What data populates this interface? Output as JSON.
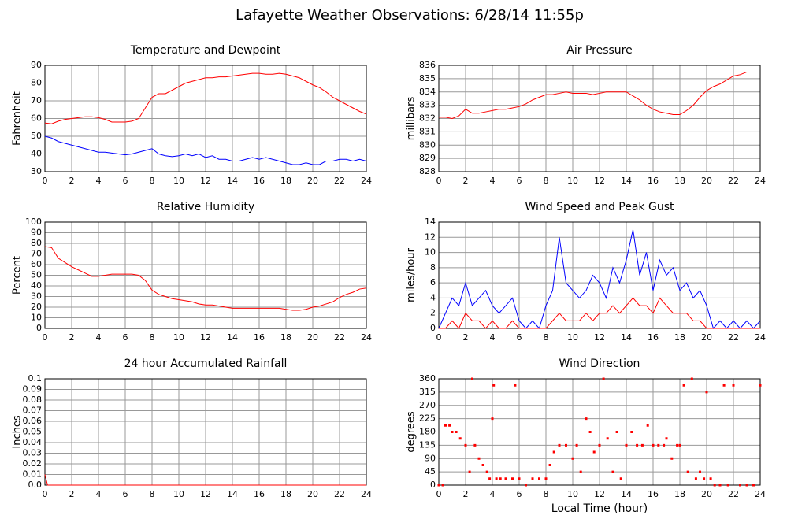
{
  "title": "Lafayette Weather Observations: 6/28/14 11:55p",
  "chart_data": [
    {
      "type": "line",
      "title": "Temperature and Dewpoint",
      "ylabel": "Fahrenheit",
      "xlim": [
        0,
        24
      ],
      "xticks": [
        0,
        2,
        4,
        6,
        8,
        10,
        12,
        14,
        16,
        18,
        20,
        22,
        24
      ],
      "ylim": [
        30,
        90
      ],
      "yticks": [
        30,
        40,
        50,
        60,
        70,
        80,
        90
      ],
      "grid": true,
      "x": [
        0,
        0.5,
        1,
        1.5,
        2,
        2.5,
        3,
        3.5,
        4,
        4.5,
        5,
        5.5,
        6,
        6.5,
        7,
        7.5,
        8,
        8.5,
        9,
        9.5,
        10,
        10.5,
        11,
        11.5,
        12,
        12.5,
        13,
        13.5,
        14,
        14.5,
        15,
        15.5,
        16,
        16.5,
        17,
        17.5,
        18,
        18.5,
        19,
        19.5,
        20,
        20.5,
        21,
        21.5,
        22,
        22.5,
        23,
        23.5,
        24
      ],
      "series": [
        {
          "color": "#ff0000",
          "values": [
            57.5,
            57,
            58.5,
            59.5,
            60,
            60.5,
            61,
            61,
            60.5,
            59.5,
            58,
            58,
            58,
            58.5,
            60,
            66,
            72,
            74,
            74,
            76,
            78,
            80,
            81,
            82,
            83,
            83,
            83.5,
            83.5,
            84,
            84.5,
            85,
            85.5,
            85.5,
            85,
            85,
            85.5,
            85,
            84,
            83,
            81,
            79,
            77.5,
            75,
            72,
            70,
            68,
            66,
            64,
            62.5
          ]
        },
        {
          "color": "#0000ff",
          "values": [
            50,
            49,
            47,
            46,
            45,
            44,
            43,
            42,
            41,
            41,
            40.5,
            40,
            39.5,
            40,
            41,
            42,
            43,
            40,
            39,
            38.5,
            39,
            40,
            39,
            40,
            38,
            39,
            37,
            37,
            36,
            36,
            37,
            38,
            37,
            38,
            37,
            36,
            35,
            34,
            34,
            35,
            34,
            34,
            36,
            36,
            37,
            37,
            36,
            37,
            36
          ]
        }
      ]
    },
    {
      "type": "line",
      "title": "Air Pressure",
      "ylabel": "millibars",
      "xlim": [
        0,
        24
      ],
      "xticks": [
        0,
        2,
        4,
        6,
        8,
        10,
        12,
        14,
        16,
        18,
        20,
        22,
        24
      ],
      "ylim": [
        828,
        836
      ],
      "yticks": [
        828,
        829,
        830,
        831,
        832,
        833,
        834,
        835,
        836
      ],
      "grid": true,
      "x": [
        0,
        0.5,
        1,
        1.5,
        2,
        2.5,
        3,
        3.5,
        4,
        4.5,
        5,
        5.5,
        6,
        6.5,
        7,
        7.5,
        8,
        8.5,
        9,
        9.5,
        10,
        10.5,
        11,
        11.5,
        12,
        12.5,
        13,
        13.5,
        14,
        14.5,
        15,
        15.5,
        16,
        16.5,
        17,
        17.5,
        18,
        18.5,
        19,
        19.5,
        20,
        20.5,
        21,
        21.5,
        22,
        22.5,
        23,
        23.5,
        24
      ],
      "series": [
        {
          "color": "#ff0000",
          "values": [
            832.1,
            832.1,
            832,
            832.2,
            832.7,
            832.4,
            832.4,
            832.5,
            832.6,
            832.7,
            832.7,
            832.8,
            832.9,
            833.1,
            833.4,
            833.6,
            833.8,
            833.8,
            833.9,
            834,
            833.9,
            833.9,
            833.9,
            833.8,
            833.9,
            834,
            834,
            834,
            834,
            833.7,
            833.4,
            833,
            832.7,
            832.5,
            832.4,
            832.3,
            832.3,
            832.6,
            833,
            833.6,
            834.1,
            834.4,
            834.6,
            834.9,
            835.2,
            835.3,
            835.5,
            835.5,
            835.5
          ]
        }
      ]
    },
    {
      "type": "line",
      "title": "Relative Humidity",
      "ylabel": "Percent",
      "xlim": [
        0,
        24
      ],
      "xticks": [
        0,
        2,
        4,
        6,
        8,
        10,
        12,
        14,
        16,
        18,
        20,
        22,
        24
      ],
      "ylim": [
        0,
        100
      ],
      "yticks": [
        0,
        10,
        20,
        30,
        40,
        50,
        60,
        70,
        80,
        90,
        100
      ],
      "grid": true,
      "x": [
        0,
        0.5,
        1,
        1.5,
        2,
        2.5,
        3,
        3.5,
        4,
        4.5,
        5,
        5.5,
        6,
        6.5,
        7,
        7.5,
        8,
        8.5,
        9,
        9.5,
        10,
        10.5,
        11,
        11.5,
        12,
        12.5,
        13,
        13.5,
        14,
        14.5,
        15,
        15.5,
        16,
        16.5,
        17,
        17.5,
        18,
        18.5,
        19,
        19.5,
        20,
        20.5,
        21,
        21.5,
        22,
        22.5,
        23,
        23.5,
        24
      ],
      "series": [
        {
          "color": "#ff0000",
          "values": [
            77,
            76,
            66,
            62,
            58,
            55,
            52,
            49,
            49,
            50,
            51,
            51,
            51,
            51,
            50,
            45,
            36,
            32,
            30,
            28,
            27,
            26,
            25,
            23,
            22,
            22,
            21,
            20,
            19,
            19,
            19,
            19,
            19,
            19,
            19,
            19,
            18,
            17,
            17,
            18,
            20,
            21,
            23,
            25,
            29,
            32,
            34,
            37,
            38
          ]
        }
      ]
    },
    {
      "type": "line",
      "title": "Wind Speed and Peak Gust",
      "ylabel": "miles/hour",
      "xlim": [
        0,
        24
      ],
      "xticks": [
        0,
        2,
        4,
        6,
        8,
        10,
        12,
        14,
        16,
        18,
        20,
        22,
        24
      ],
      "ylim": [
        0,
        14
      ],
      "yticks": [
        0,
        2,
        4,
        6,
        8,
        10,
        12,
        14
      ],
      "grid": true,
      "x": [
        0,
        0.5,
        1,
        1.5,
        2,
        2.5,
        3,
        3.5,
        4,
        4.5,
        5,
        5.5,
        6,
        6.5,
        7,
        7.5,
        8,
        8.5,
        9,
        9.5,
        10,
        10.5,
        11,
        11.5,
        12,
        12.5,
        13,
        13.5,
        14,
        14.5,
        15,
        15.5,
        16,
        16.5,
        17,
        17.5,
        18,
        18.5,
        19,
        19.5,
        20,
        20.5,
        21,
        21.5,
        22,
        22.5,
        23,
        23.5,
        24
      ],
      "series": [
        {
          "color": "#0000ff",
          "values": [
            0,
            2,
            4,
            3,
            6,
            3,
            4,
            5,
            3,
            2,
            3,
            4,
            1,
            0,
            1,
            0,
            3,
            5,
            12,
            6,
            5,
            4,
            5,
            7,
            6,
            4,
            8,
            6,
            9,
            13,
            7,
            10,
            5,
            9,
            7,
            8,
            5,
            6,
            4,
            5,
            3,
            0,
            1,
            0,
            1,
            0,
            1,
            0,
            1
          ]
        },
        {
          "color": "#ff0000",
          "values": [
            0,
            0,
            1,
            0,
            2,
            1,
            1,
            0,
            1,
            0,
            0,
            1,
            0,
            0,
            0,
            0,
            0,
            1,
            2,
            1,
            1,
            1,
            2,
            1,
            2,
            2,
            3,
            2,
            3,
            4,
            3,
            3,
            2,
            4,
            3,
            2,
            2,
            2,
            1,
            1,
            0,
            0,
            0,
            0,
            0,
            0,
            0,
            0,
            0
          ]
        }
      ]
    },
    {
      "type": "line",
      "title": "24 hour Accumulated Rainfall",
      "ylabel": "Inches",
      "xlim": [
        0,
        24
      ],
      "xticks": [
        0,
        2,
        4,
        6,
        8,
        10,
        12,
        14,
        16,
        18,
        20,
        22,
        24
      ],
      "ylim": [
        0,
        0.1
      ],
      "yticks": [
        {
          "value": 0,
          "label": "0.0"
        },
        0.01,
        0.02,
        0.03,
        0.04,
        0.05,
        0.06,
        0.07,
        0.08,
        0.09,
        0.1
      ],
      "grid": true,
      "x": [
        0,
        0.2,
        24
      ],
      "series": [
        {
          "color": "#ff0000",
          "values": [
            0.01,
            0,
            0
          ]
        }
      ]
    },
    {
      "type": "scatter",
      "title": "Wind Direction",
      "ylabel": "degrees",
      "xlabel": "Local Time (hour)",
      "xlim": [
        0,
        24
      ],
      "xticks": [
        0,
        2,
        4,
        6,
        8,
        10,
        12,
        14,
        16,
        18,
        20,
        22,
        24
      ],
      "ylim": [
        0,
        360
      ],
      "yticks": [
        0,
        45,
        90,
        135,
        180,
        225,
        270,
        315,
        360
      ],
      "grid": true,
      "color": "#ff0000",
      "x": [
        0,
        0.3,
        0.5,
        0.8,
        1,
        1.3,
        1.6,
        2,
        2.3,
        2.5,
        2.7,
        3,
        3.3,
        3.6,
        3.8,
        4,
        4.1,
        4.3,
        4.6,
        5,
        5.5,
        5.7,
        6,
        6.5,
        7,
        7.5,
        8,
        8.3,
        8.6,
        9,
        9.5,
        10,
        10.3,
        10.6,
        11,
        11.3,
        11.6,
        12,
        12.3,
        12.6,
        13,
        13.3,
        13.6,
        14,
        14.4,
        14.8,
        15.2,
        15.6,
        16,
        16.4,
        16.8,
        17,
        17.4,
        17.8,
        18,
        18.3,
        18.6,
        18.9,
        19.2,
        19.5,
        19.8,
        20,
        20.3,
        20.6,
        21,
        21.3,
        21.6,
        22,
        22.5,
        23,
        23.5,
        24
      ],
      "values": [
        0,
        0,
        202,
        202,
        180,
        180,
        158,
        135,
        45,
        360,
        135,
        90,
        68,
        45,
        22,
        225,
        338,
        22,
        22,
        22,
        22,
        338,
        22,
        0,
        22,
        22,
        22,
        68,
        112,
        135,
        135,
        90,
        135,
        45,
        225,
        180,
        112,
        135,
        360,
        158,
        45,
        180,
        22,
        135,
        180,
        135,
        135,
        202,
        135,
        135,
        135,
        158,
        90,
        135,
        135,
        338,
        45,
        360,
        22,
        45,
        22,
        315,
        22,
        0,
        0,
        338,
        0,
        338,
        0,
        0,
        0,
        338
      ]
    }
  ]
}
